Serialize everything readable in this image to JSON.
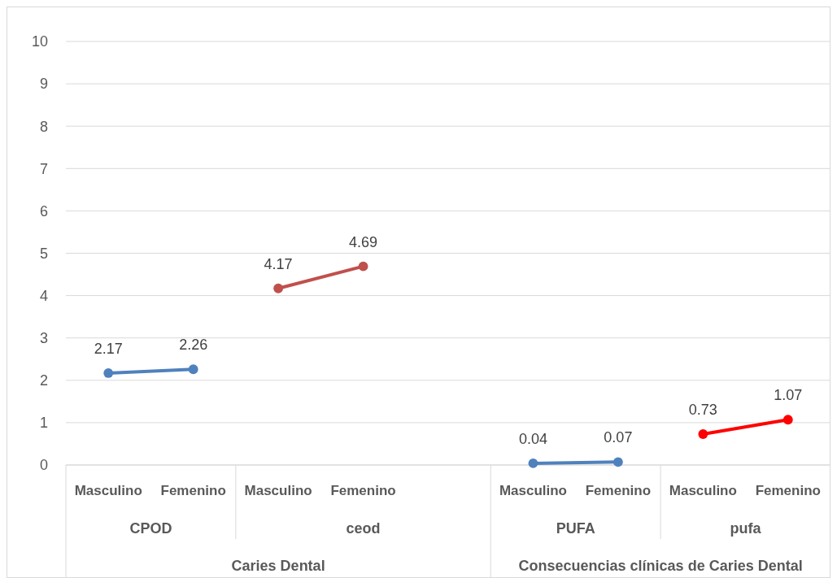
{
  "chart_data": {
    "type": "line",
    "categories": [
      "Masculino",
      "Femenino",
      "Masculino",
      "Femenino",
      null,
      "Masculino",
      "Femenino",
      "Masculino",
      "Femenino"
    ],
    "annotations": [
      "CPOD",
      "ceod",
      "PUFA",
      "pufa",
      "Caries Dental",
      "Consecuencias clínicas de Caries Dental"
    ],
    "series": [
      {
        "color": "#4f81bd",
        "values": [
          2.17,
          2.26,
          null,
          null,
          null,
          null,
          null,
          null,
          null
        ]
      },
      {
        "color": "#c0504d",
        "values": [
          null,
          null,
          4.17,
          4.69,
          null,
          null,
          null,
          null,
          null
        ]
      },
      {
        "color": "#4f81bd",
        "values": [
          null,
          null,
          null,
          null,
          null,
          0.04,
          0.07,
          null,
          null
        ]
      },
      {
        "color": "#ff0000",
        "values": [
          null,
          null,
          null,
          null,
          null,
          null,
          null,
          0.73,
          1.07
        ]
      }
    ],
    "ylim": [
      0,
      10
    ],
    "yticks": [
      0,
      1,
      2,
      3,
      4,
      5,
      6,
      7,
      8,
      9,
      10
    ],
    "grid": "y",
    "marker": "circle",
    "line_style": "solid",
    "data_labels": true
  }
}
